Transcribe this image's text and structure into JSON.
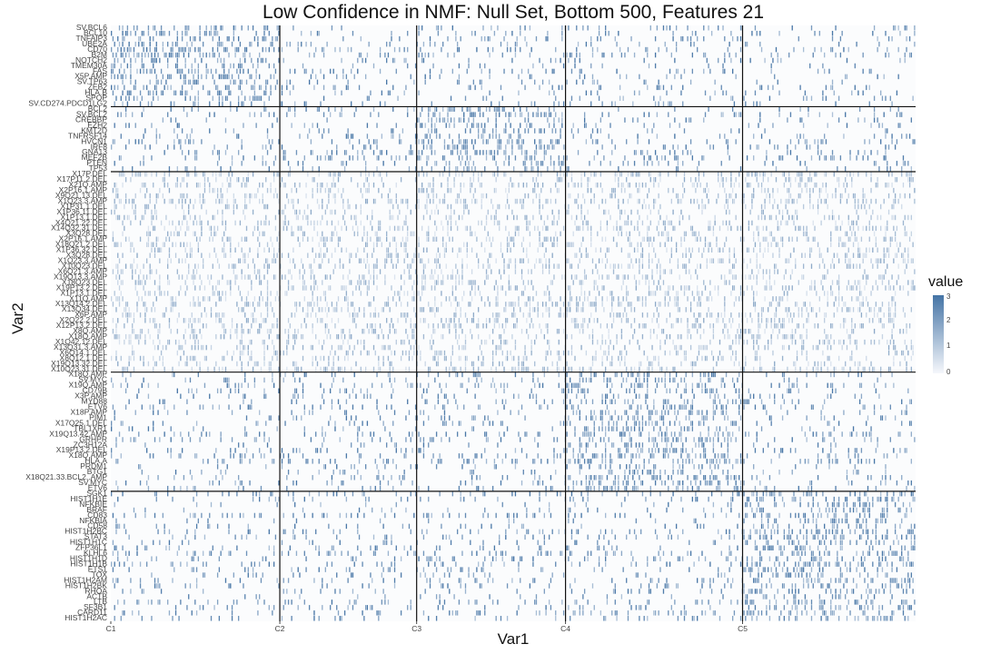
{
  "chart_data": {
    "type": "heatmap",
    "title": "Low Confidence in NMF: Null Set, Bottom 500, Features 21",
    "xlabel": "Var1",
    "ylabel": "Var2",
    "x_tick_labels": [
      "C1",
      "C2",
      "C3",
      "C4",
      "C5"
    ],
    "x_cluster_boundaries": [
      0,
      0.21,
      0.38,
      0.565,
      0.785,
      1
    ],
    "n_samples": 500,
    "value_range": [
      0,
      3
    ],
    "colorscale": {
      "low": "#f5f7fb",
      "high": "#4574a5"
    },
    "grid": true,
    "legend": {
      "title": "value",
      "ticks": [
        "0",
        "1",
        "2",
        "3"
      ],
      "position": "right"
    },
    "y_groups": [
      {
        "rows": [
          "SV.BCL6",
          "BCL10",
          "TNFAIP3",
          "UBE2A",
          "CD70",
          "B2M",
          "NOTCH2",
          "TMEM30A",
          "FAS",
          "X5P.AMP",
          "SV.TP63",
          "ZEB2",
          "HLA.B",
          "SPOP",
          "SV.CD274.PDCD1LG2"
        ],
        "signal_cluster": 0,
        "amp": 3
      },
      {
        "rows": [
          "BCL2",
          "SV.BCL2",
          "CREBBP",
          "EZH2",
          "KMT2D",
          "TNFRSF14",
          "HVCN1",
          "IRF8",
          "GNA13",
          "MEF2B",
          "PTEN",
          "TP53"
        ],
        "signal_cluster": 2,
        "amp": 3
      },
      {
        "rows": [
          "X17P.DEL",
          "X17P11.2.DEL",
          "X21Q.AMP",
          "X2P16.1.AMP",
          "X9Q21.13.DEL",
          "X1Q23.3.AMP",
          "X1P31.1.DEL",
          "X1P36.11.DEL",
          "X1P13.1.DEL",
          "X4Q21.22.DEL",
          "X14Q32.31.DEL",
          "X3Q28.DEL",
          "X2P16.1.AMP",
          "X18Q21.2.DEL",
          "X1P36.32.DEL",
          "X3Q28.DEL",
          "X1Q23.3.AMP",
          "X10Q23.DEL",
          "X6Q21.3.AMP",
          "X19Q13.3.AMP",
          "X18Q23.DEL",
          "X19P13.2.DEL",
          "X1P13.1.DEL",
          "X11Q.AMP",
          "X13Q14.2.DEL",
          "X13Q34.DEL",
          "X6P.AMP",
          "X2Q22.2.DEL",
          "X12P13.2.DEL",
          "X8Q.AMP",
          "X18Q.AMP",
          "X1Q42.12.DEL",
          "X13Q31.3.AMP",
          "X6Q14.1.DEL",
          "X8Q12.1.DEL",
          "X19Q13.32.DEL",
          "X10Q23.31.DEL"
        ],
        "signal_cluster": -1,
        "amp": 1.4
      },
      {
        "rows": [
          "X18Q.AMP",
          "SV.MYC",
          "X19Q.AMP",
          "CD79B",
          "X3P.AMP",
          "MYD88",
          "ETV6",
          "X18P.AMP",
          "PIM1",
          "X17Q25.1.DEL",
          "TBL1XR1",
          "X19Q13.42.AMP",
          "GRHPR",
          "ZC3H12A",
          "X19P13.2.DEL",
          "X18Q.AMP",
          "HLA.A",
          "PRDM1",
          "BTG1",
          "X18Q21.33.BCL2..AMP",
          "SV.MYC",
          "ETV6"
        ],
        "signal_cluster": 3,
        "amp": 3
      },
      {
        "rows": [
          "SGK1",
          "HIST1H1E",
          "NFKBIE",
          "BRAF",
          "CD83",
          "NFKBIA",
          "CD58",
          "HIST1H2BC",
          "STAT3",
          "HIST1H1C",
          "ZFP36L1",
          "KLHL6",
          "HIST1H1D",
          "HIST1H1B",
          "ETS1",
          "TOX",
          "HIST1H2AM",
          "HIST1H2BK",
          "RHOA",
          "ACTB",
          "LTB",
          "SF3B1",
          "CARD11",
          "HIST1H2AC"
        ],
        "signal_cluster": 4,
        "amp": 3
      }
    ]
  }
}
